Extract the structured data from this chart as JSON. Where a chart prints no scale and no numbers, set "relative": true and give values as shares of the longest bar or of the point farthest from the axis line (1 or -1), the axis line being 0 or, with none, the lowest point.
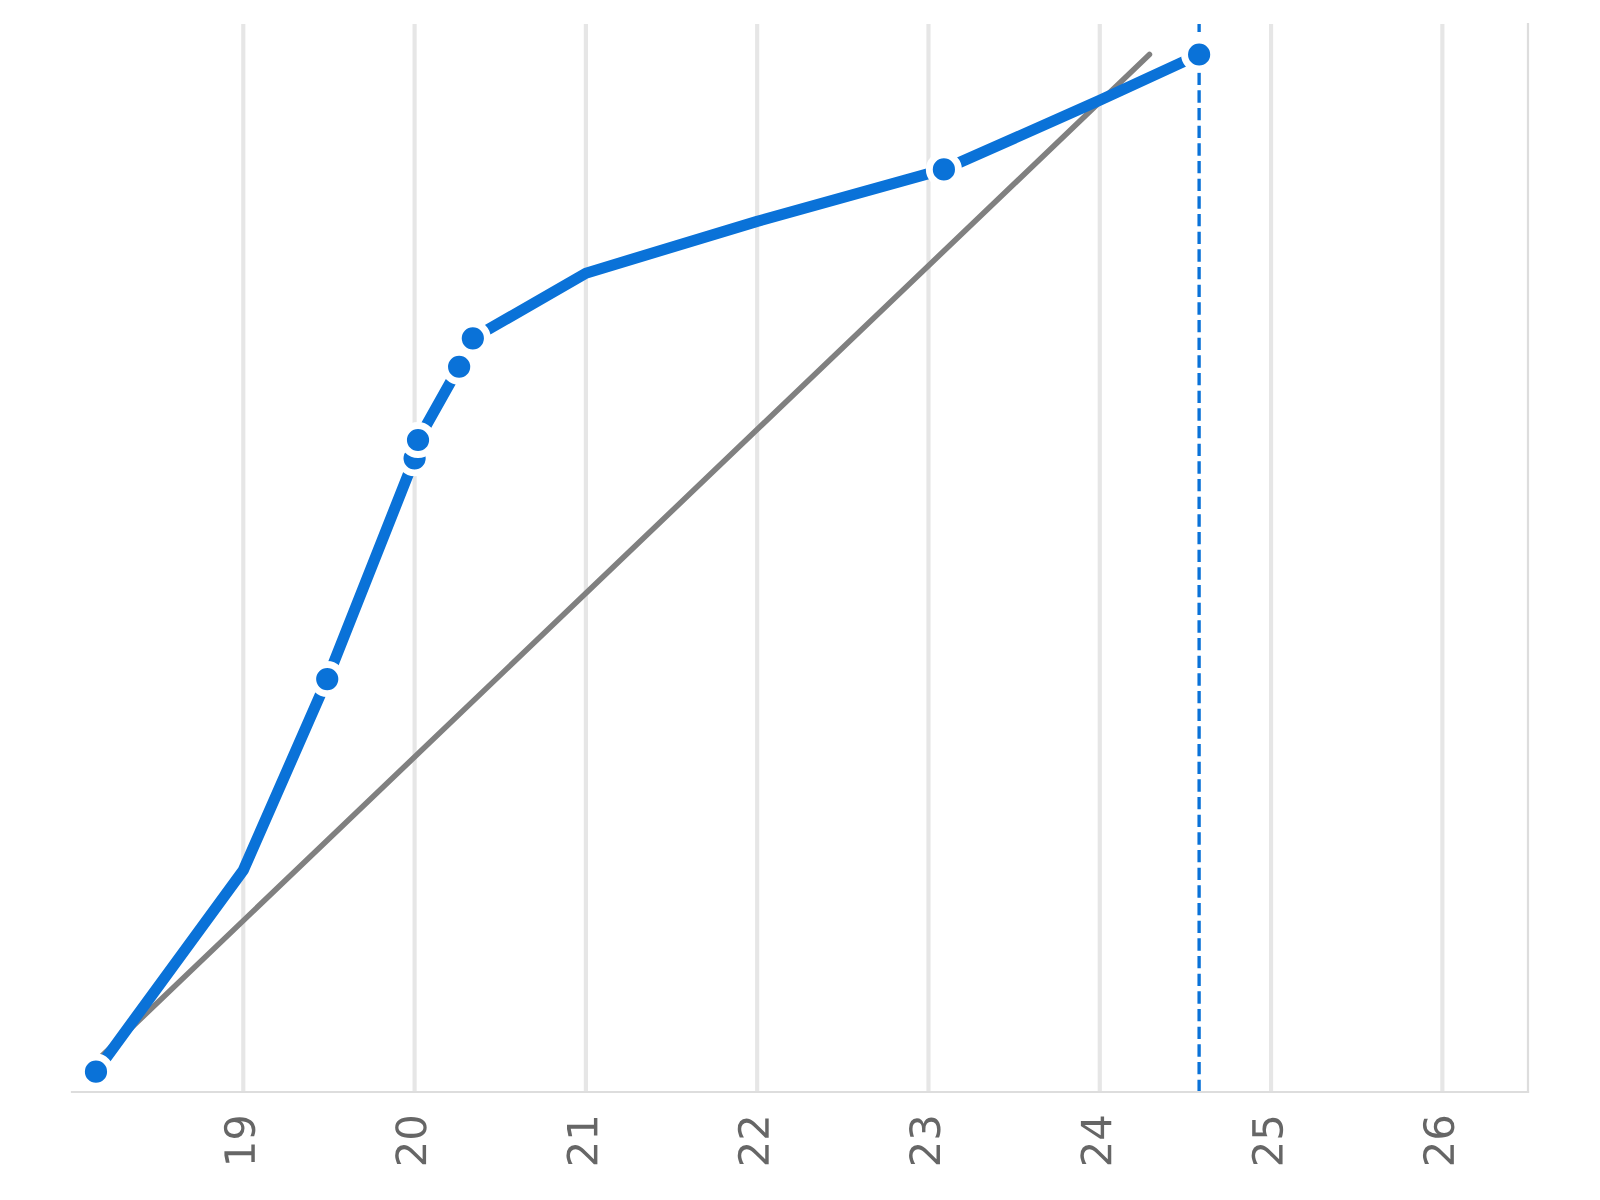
{
  "chart_data": {
    "type": "line",
    "relative": true,
    "xlim": [
      18.0,
      26.5
    ],
    "xticks": [
      19,
      20,
      21,
      22,
      23,
      24,
      25,
      26
    ],
    "grid": "x",
    "line_style": "solid",
    "series": [
      {
        "color": "#808080",
        "marker": "none",
        "x": [
          18.14,
          24.29
        ],
        "values": [
          0.01,
          1.0
        ]
      },
      {
        "color": "#0a72d8",
        "marker": "none",
        "x": [
          18.14,
          19.0,
          19.49,
          20.0,
          20.02,
          20.26,
          20.34,
          21.0,
          22.0,
          23.09,
          24.0,
          24.58
        ],
        "values": [
          0,
          0.198,
          0.386,
          0.603,
          0.621,
          0.693,
          0.721,
          0.785,
          0.836,
          0.887,
          0.955,
          1.0
        ]
      },
      {
        "type": "scatter",
        "color": "#0a72d8",
        "marker": "circle",
        "x": [
          18.14,
          19.49,
          20.0,
          20.02,
          20.26,
          20.34,
          23.09,
          24.58
        ],
        "values": [
          0,
          0.386,
          0.603,
          0.621,
          0.693,
          0.721,
          0.887,
          1.0
        ]
      }
    ],
    "ref_lines": [
      {
        "axis": "x",
        "value": 24.58,
        "color": "#0a72d8",
        "line_style": "dashed"
      }
    ]
  }
}
